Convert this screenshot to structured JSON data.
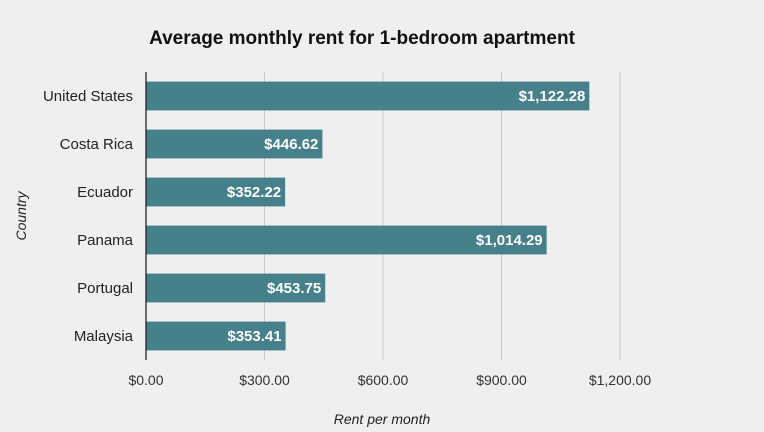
{
  "chart_data": {
    "type": "bar",
    "orientation": "horizontal",
    "title": "Average monthly rent for 1-bedroom apartment",
    "xlabel": "Rent per month",
    "ylabel": "Country",
    "categories": [
      "United States",
      "Costa Rica",
      "Ecuador",
      "Panama",
      "Portugal",
      "Malaysia"
    ],
    "values": [
      1122.28,
      446.62,
      352.22,
      1014.29,
      453.75,
      353.41
    ],
    "data_labels": [
      "$1,122.28",
      "$446.62",
      "$352.22",
      "$1,014.29",
      "$453.75",
      "$353.41"
    ],
    "xlim": [
      0,
      1200
    ],
    "ticks": [
      0,
      300,
      600,
      900,
      1200
    ],
    "tick_labels": [
      "$0.00",
      "$300.00",
      "$600.00",
      "$900.00",
      "$1,200.00"
    ],
    "grid": true,
    "legend": "none",
    "bar_color": "#46808b"
  }
}
